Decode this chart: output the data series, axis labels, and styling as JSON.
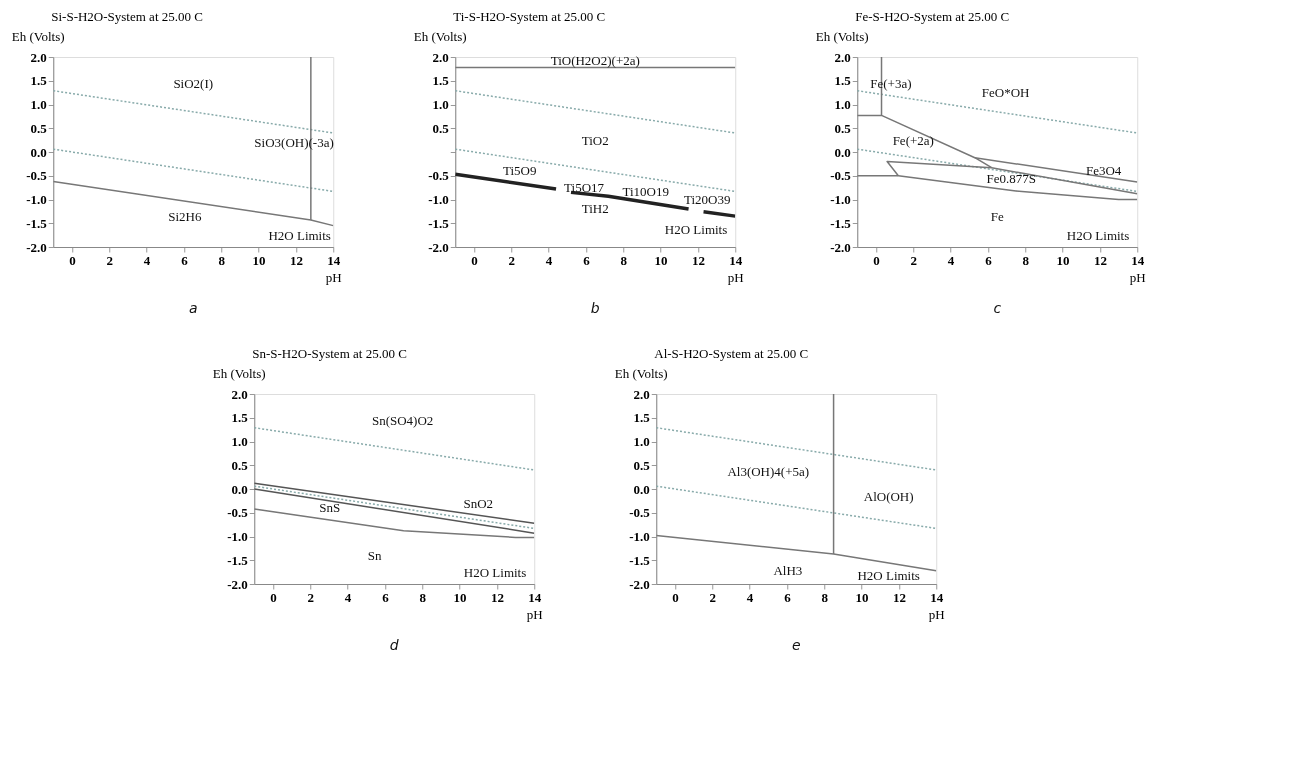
{
  "chart_data": [
    {
      "type": "line",
      "title": "Si-S-H2O-System at 25.00 C",
      "xlabel": "pH",
      "ylabel": "Eh (Volts)",
      "xlim": [
        -1,
        14
      ],
      "ylim": [
        -2,
        2
      ],
      "xticks": [
        0,
        2,
        4,
        6,
        8,
        10,
        12,
        14
      ],
      "yticks": [
        {
          "value": -2,
          "label": "-2.0"
        },
        {
          "value": -1.5,
          "label": "-1.5"
        },
        {
          "value": -1,
          "label": "-1.0"
        },
        {
          "value": -0.5,
          "label": "-0.5"
        },
        {
          "value": 0,
          "label": "0.0"
        },
        {
          "value": 0.5,
          "label": "0.5"
        },
        {
          "value": 1,
          "label": "1.0"
        },
        {
          "value": 1.5,
          "label": "1.5"
        },
        {
          "value": 2,
          "label": "2.0"
        }
      ],
      "series": [
        {
          "color": "#88aaaa",
          "line_style": "dotted",
          "x": [
            -1,
            14
          ],
          "values": [
            1.29,
            0.4
          ]
        },
        {
          "color": "#88aaaa",
          "line_style": "dotted",
          "x": [
            -1,
            14
          ],
          "values": [
            0.06,
            -0.83
          ]
        },
        {
          "color": "#777777",
          "line_style": "solid",
          "x": [
            -1,
            12.8,
            14
          ],
          "values": [
            -0.62,
            -1.43,
            -1.55
          ]
        },
        {
          "color": "#777777",
          "line_style": "solid",
          "x": [
            12.8,
            12.8
          ],
          "values": [
            -1.43,
            2.0
          ]
        }
      ],
      "annotations": [
        "SiO2(I)",
        "SiO3(OH)(-3a)",
        "Si2H6",
        "H2O Limits",
        "a"
      ]
    },
    {
      "type": "line",
      "title": "Ti-S-H2O-System at 25.00 C",
      "xlabel": "pH",
      "ylabel": "Eh (Volts)",
      "xlim": [
        -1,
        14
      ],
      "ylim": [
        -2,
        2
      ],
      "xticks": [
        0,
        2,
        4,
        6,
        8,
        10,
        12,
        14
      ],
      "yticks": [
        {
          "value": -2,
          "label": "-2.0"
        },
        {
          "value": -1.5,
          "label": "-1.5"
        },
        {
          "value": -1,
          "label": "-1.0"
        },
        {
          "value": -0.5,
          "label": "-0.5"
        },
        {
          "value": 0,
          "label": null
        },
        {
          "value": 0.5,
          "label": "0.5"
        },
        {
          "value": 1,
          "label": "1.0"
        },
        {
          "value": 1.5,
          "label": "1.5"
        },
        {
          "value": 2,
          "label": "2.0"
        }
      ],
      "series": [
        {
          "color": "#88aaaa",
          "line_style": "dotted",
          "x": [
            -1,
            14
          ],
          "values": [
            1.29,
            0.4
          ]
        },
        {
          "color": "#88aaaa",
          "line_style": "dotted",
          "x": [
            -1,
            14
          ],
          "values": [
            0.06,
            -0.83
          ]
        },
        {
          "color": "#777777",
          "line_style": "solid",
          "x": [
            -1,
            14
          ],
          "values": [
            1.78,
            1.78
          ]
        },
        {
          "color": "#222222",
          "line_style": "solid",
          "x": [
            -1,
            4.4
          ],
          "values": [
            -0.47,
            -0.78
          ]
        },
        {
          "color": "#222222",
          "line_style": "solid",
          "x": [
            5.2,
            7.2,
            11.5
          ],
          "values": [
            -0.85,
            -0.93,
            -1.2
          ]
        },
        {
          "color": "#222222",
          "line_style": "solid",
          "x": [
            12.3,
            14
          ],
          "values": [
            -1.26,
            -1.35
          ]
        }
      ],
      "annotations": [
        "TiO(H2O2)(+2a)",
        "TiO2",
        "Ti5O9",
        "Ti5O17",
        "Ti10O19",
        "Ti20O39",
        "TiH2",
        "H2O Limits",
        "b"
      ]
    },
    {
      "type": "line",
      "title": "Fe-S-H2O-System at 25.00 C",
      "xlabel": "pH",
      "ylabel": "Eh (Volts)",
      "xlim": [
        -1,
        14
      ],
      "ylim": [
        -2,
        2
      ],
      "xticks": [
        0,
        2,
        4,
        6,
        8,
        10,
        12,
        14
      ],
      "yticks": [
        {
          "value": -2,
          "label": "-2.0"
        },
        {
          "value": -1.5,
          "label": "-1.5"
        },
        {
          "value": -1,
          "label": "-1.0"
        },
        {
          "value": -0.5,
          "label": "-0.5"
        },
        {
          "value": 0,
          "label": "0.0"
        },
        {
          "value": 0.5,
          "label": "0.5"
        },
        {
          "value": 1,
          "label": "1.0"
        },
        {
          "value": 1.5,
          "label": "1.5"
        },
        {
          "value": 2,
          "label": "2.0"
        }
      ],
      "series": [
        {
          "color": "#88aaaa",
          "line_style": "dotted",
          "x": [
            -1,
            14
          ],
          "values": [
            1.29,
            0.4
          ]
        },
        {
          "color": "#88aaaa",
          "line_style": "dotted",
          "x": [
            -1,
            14
          ],
          "values": [
            0.06,
            -0.83
          ]
        },
        {
          "color": "#777777",
          "line_style": "solid",
          "x": [
            0.3,
            0.3
          ],
          "values": [
            0.77,
            2.0
          ]
        },
        {
          "color": "#777777",
          "line_style": "solid",
          "x": [
            -1,
            0.3,
            5.3,
            6.2
          ],
          "values": [
            0.77,
            0.77,
            -0.12,
            -0.33
          ]
        },
        {
          "color": "#777777",
          "line_style": "solid",
          "x": [
            5.3,
            14
          ],
          "values": [
            -0.12,
            -0.63
          ]
        },
        {
          "color": "#777777",
          "line_style": "solid",
          "x": [
            1.2,
            0.6,
            6.2,
            14
          ],
          "values": [
            -0.5,
            -0.2,
            -0.33,
            -0.88
          ]
        },
        {
          "color": "#777777",
          "line_style": "solid",
          "x": [
            -1,
            1.2,
            7.5,
            13,
            14
          ],
          "values": [
            -0.5,
            -0.5,
            -0.82,
            -1.0,
            -1.0
          ]
        }
      ],
      "annotations": [
        "Fe(+3a)",
        "FeO*OH",
        "Fe(+2a)",
        "Fe0.877S",
        "Fe3O4",
        "Fe",
        "H2O Limits",
        "c"
      ]
    },
    {
      "type": "line",
      "title": "Sn-S-H2O-System at 25.00 C",
      "xlabel": "pH",
      "ylabel": "Eh (Volts)",
      "xlim": [
        -1,
        14
      ],
      "ylim": [
        -2,
        2
      ],
      "xticks": [
        0,
        2,
        4,
        6,
        8,
        10,
        12,
        14
      ],
      "yticks": [
        {
          "value": -2,
          "label": "-2.0"
        },
        {
          "value": -1.5,
          "label": "-1.5"
        },
        {
          "value": -1,
          "label": "-1.0"
        },
        {
          "value": -0.5,
          "label": "-0.5"
        },
        {
          "value": 0,
          "label": "0.0"
        },
        {
          "value": 0.5,
          "label": "0.5"
        },
        {
          "value": 1,
          "label": "1.0"
        },
        {
          "value": 1.5,
          "label": "1.5"
        },
        {
          "value": 2,
          "label": "2.0"
        }
      ],
      "series": [
        {
          "color": "#88aaaa",
          "line_style": "dotted",
          "x": [
            -1,
            14
          ],
          "values": [
            1.29,
            0.4
          ]
        },
        {
          "color": "#88aaaa",
          "line_style": "dotted",
          "x": [
            -1,
            14
          ],
          "values": [
            0.06,
            -0.83
          ]
        },
        {
          "color": "#555555",
          "line_style": "solid",
          "x": [
            -1,
            14
          ],
          "values": [
            0.12,
            -0.72
          ]
        },
        {
          "color": "#555555",
          "line_style": "solid",
          "x": [
            -1,
            14
          ],
          "values": [
            0.0,
            -0.93
          ]
        },
        {
          "color": "#777777",
          "line_style": "solid",
          "x": [
            -1,
            7.0,
            13,
            14
          ],
          "values": [
            -0.42,
            -0.88,
            -1.02,
            -1.02
          ]
        }
      ],
      "annotations": [
        "Sn(SO4)O2",
        "SnS",
        "SnO2",
        "Sn",
        "H2O Limits",
        "d"
      ]
    },
    {
      "type": "line",
      "title": "Al-S-H2O-System at 25.00 C",
      "xlabel": "pH",
      "ylabel": "Eh (Volts)",
      "xlim": [
        -1,
        14
      ],
      "ylim": [
        -2,
        2
      ],
      "xticks": [
        0,
        2,
        4,
        6,
        8,
        10,
        12,
        14
      ],
      "yticks": [
        {
          "value": -2,
          "label": "-2.0"
        },
        {
          "value": -1.5,
          "label": "-1.5"
        },
        {
          "value": -1,
          "label": "-1.0"
        },
        {
          "value": -0.5,
          "label": "-0.5"
        },
        {
          "value": 0,
          "label": "0.0"
        },
        {
          "value": 0.5,
          "label": "0.5"
        },
        {
          "value": 1,
          "label": "1.0"
        },
        {
          "value": 1.5,
          "label": "1.5"
        },
        {
          "value": 2,
          "label": "2.0"
        }
      ],
      "series": [
        {
          "color": "#88aaaa",
          "line_style": "dotted",
          "x": [
            -1,
            14
          ],
          "values": [
            1.29,
            0.4
          ]
        },
        {
          "color": "#88aaaa",
          "line_style": "dotted",
          "x": [
            -1,
            14
          ],
          "values": [
            0.06,
            -0.83
          ]
        },
        {
          "color": "#777777",
          "line_style": "solid",
          "x": [
            -1,
            8.5,
            14
          ],
          "values": [
            -0.98,
            -1.37,
            -1.72
          ]
        },
        {
          "color": "#777777",
          "line_style": "solid",
          "x": [
            8.5,
            8.5
          ],
          "values": [
            -1.37,
            2.0
          ]
        }
      ],
      "annotations": [
        "Al3(OH)4(+5a)",
        "AlO(OH)",
        "AlH3",
        "H2O Limits",
        "e"
      ]
    }
  ]
}
